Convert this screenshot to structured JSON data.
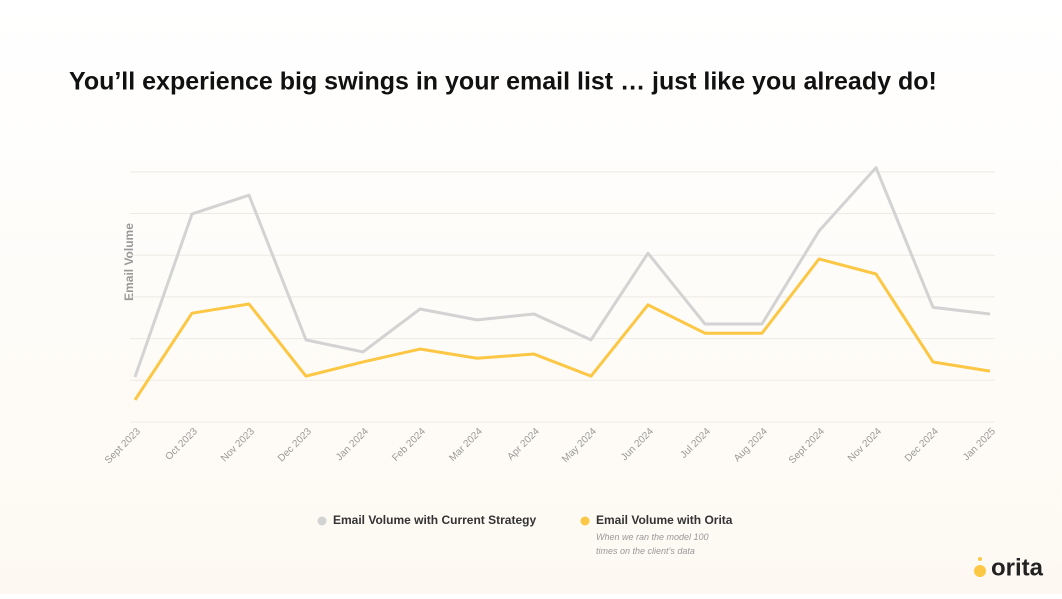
{
  "chart_data": {
    "type": "line",
    "title": "You’ll experience big swings in your email list … just like you already do!",
    "y_label": "Email Volume",
    "categories": [
      "Sept 2023",
      "Oct 2023",
      "Nov 2023",
      "Dec 2023",
      "Jan 2024",
      "Feb 2024",
      "Mar 2024",
      "Apr 2024",
      "May 2024",
      "Jun 2024",
      "Jul 2024",
      "Aug 2024",
      "Sept 2024",
      "Nov 2024",
      "Dec 2024",
      "Jan 2025"
    ],
    "series": [
      {
        "name": "Email Volume with Current Strategy",
        "color": "#d3d3d3",
        "values": [
          1.08,
          4.99,
          5.44,
          1.97,
          1.68,
          2.71,
          2.45,
          2.59,
          1.97,
          4.05,
          2.35,
          2.35,
          4.58,
          6.1,
          2.75,
          2.59
        ]
      },
      {
        "name": "Email Volume with Orita",
        "color": "#fcc745",
        "note": "When we ran the model 100 times on the client’s data",
        "values": [
          0.53,
          2.61,
          2.83,
          1.1,
          1.44,
          1.75,
          1.53,
          1.63,
          1.1,
          2.81,
          2.13,
          2.13,
          3.91,
          3.55,
          1.44,
          1.22
        ]
      }
    ],
    "ylim": [
      0,
      6.5
    ],
    "yticks": [
      0,
      1,
      2,
      3,
      4,
      5,
      6
    ],
    "grid": true,
    "brand": "orita"
  }
}
